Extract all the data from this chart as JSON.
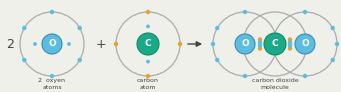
{
  "bg_color": "#f0f0eb",
  "oxygen_color": "#5bbee0",
  "oxygen_border": "#3a8ab0",
  "carbon_color": "#1aaa88",
  "carbon_border": "#0a8a68",
  "electron_blue": "#5bbee0",
  "electron_orange": "#e8a030",
  "ring_color": "#aaaaaa",
  "text_color": "#444444",
  "label_2": "2",
  "label_oxygen": "2  oxyen\natoms",
  "label_carbon": "carbon\natom",
  "label_co2": "carbon dioxide\nmolecule",
  "letter_O": "O",
  "letter_C": "C",
  "r_outer": 32,
  "r_nucleus_O": 10,
  "r_nucleus_C": 11,
  "r_electron": 2.2
}
